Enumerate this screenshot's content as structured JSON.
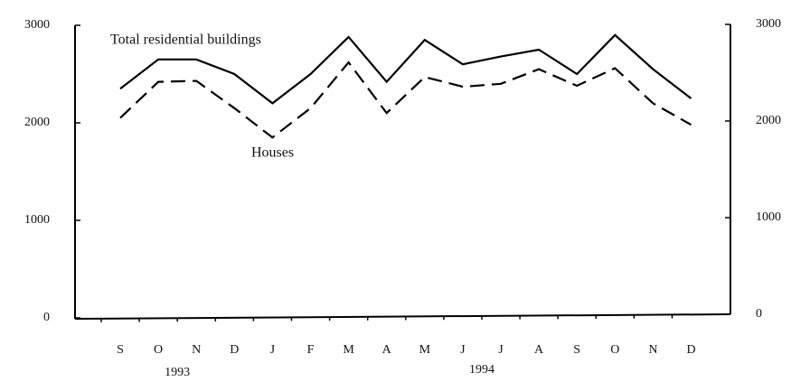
{
  "chart_data": {
    "type": "line",
    "categories": [
      "S",
      "O",
      "N",
      "D",
      "J",
      "F",
      "M",
      "A",
      "M",
      "J",
      "J",
      "A",
      "S",
      "O",
      "N",
      "D"
    ],
    "year_labels": [
      "1993",
      "1994"
    ],
    "series": [
      {
        "name": "Total residential buildings",
        "color": "#000000",
        "dash": "solid",
        "values": [
          2350,
          2650,
          2650,
          2500,
          2200,
          2500,
          2880,
          2420,
          2850,
          2600,
          2680,
          2750,
          2500,
          2900,
          2550,
          2250
        ]
      },
      {
        "name": "Houses",
        "color": "#000000",
        "dash": "dashed",
        "values": [
          2050,
          2420,
          2430,
          2150,
          1850,
          2150,
          2620,
          2100,
          2470,
          2370,
          2400,
          2550,
          2380,
          2560,
          2200,
          1980
        ]
      }
    ],
    "ylim": [
      0,
      3000
    ],
    "yticks": [
      0,
      1000,
      2000,
      3000
    ],
    "y2lim": [
      0,
      3000
    ],
    "y2ticks": [
      0,
      1000,
      2000,
      3000
    ],
    "grid": false
  }
}
